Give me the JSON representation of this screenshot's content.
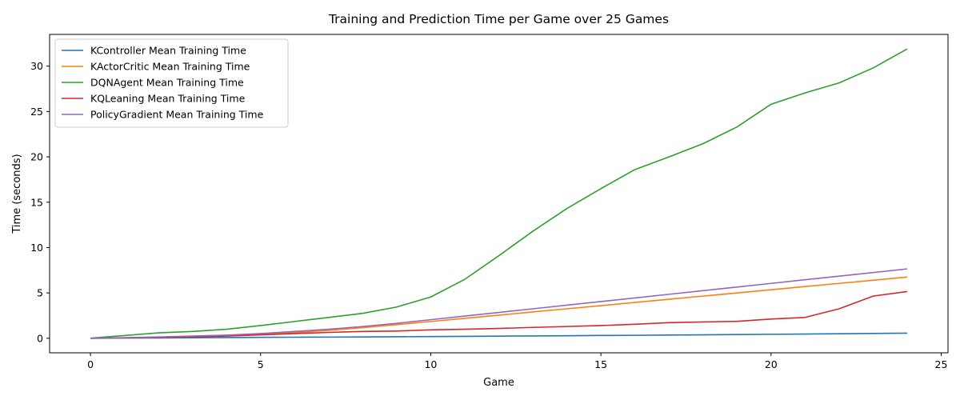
{
  "chart_data": {
    "type": "line",
    "title": "Training and Prediction Time per Game over 25 Games",
    "xlabel": "Game",
    "ylabel": "Time (seconds)",
    "xlim": [
      -1.2,
      25.2
    ],
    "ylim": [
      -1.6,
      33.5
    ],
    "xticks": [
      0,
      5,
      10,
      15,
      20,
      25
    ],
    "yticks": [
      0,
      5,
      10,
      15,
      20,
      25,
      30
    ],
    "grid": false,
    "legend_position": "top-left",
    "x": [
      0,
      1,
      2,
      3,
      4,
      5,
      6,
      7,
      8,
      9,
      10,
      11,
      12,
      13,
      14,
      15,
      16,
      17,
      18,
      19,
      20,
      21,
      22,
      23,
      24
    ],
    "series": [
      {
        "name": "KController Mean Training Time",
        "color": "#1f77b4",
        "values": [
          0.0,
          0.02,
          0.04,
          0.06,
          0.08,
          0.1,
          0.12,
          0.13,
          0.15,
          0.17,
          0.19,
          0.21,
          0.24,
          0.26,
          0.28,
          0.31,
          0.33,
          0.36,
          0.38,
          0.41,
          0.44,
          0.47,
          0.5,
          0.53,
          0.57
        ]
      },
      {
        "name": "KActorCritic Mean Training Time",
        "color": "#ff7f0e",
        "values": [
          0.0,
          0.05,
          0.1,
          0.17,
          0.27,
          0.42,
          0.62,
          0.87,
          1.17,
          1.5,
          1.85,
          2.2,
          2.55,
          2.9,
          3.25,
          3.6,
          3.95,
          4.3,
          4.65,
          5.0,
          5.35,
          5.7,
          6.05,
          6.4,
          6.75
        ]
      },
      {
        "name": "DQNAgent Mean Training Time",
        "color": "#2ca02c",
        "values": [
          0.02,
          0.3,
          0.6,
          0.75,
          1.0,
          1.4,
          1.85,
          2.3,
          2.75,
          3.45,
          4.55,
          6.5,
          9.1,
          11.8,
          14.3,
          16.5,
          18.6,
          20.0,
          21.45,
          23.3,
          25.8,
          27.05,
          28.15,
          29.8,
          31.9
        ]
      },
      {
        "name": "KQLeaning Mean Training Time",
        "color": "#d62728",
        "values": [
          0.0,
          0.05,
          0.1,
          0.17,
          0.25,
          0.38,
          0.52,
          0.65,
          0.75,
          0.8,
          0.93,
          1.0,
          1.08,
          1.2,
          1.3,
          1.4,
          1.55,
          1.72,
          1.8,
          1.87,
          2.12,
          2.3,
          3.25,
          4.65,
          5.15
        ]
      },
      {
        "name": "PolicyGradient Mean Training Time",
        "color": "#9467bd",
        "values": [
          0.0,
          0.07,
          0.15,
          0.25,
          0.35,
          0.52,
          0.75,
          1.0,
          1.3,
          1.65,
          2.05,
          2.45,
          2.85,
          3.25,
          3.65,
          4.05,
          4.45,
          4.85,
          5.25,
          5.65,
          6.05,
          6.45,
          6.85,
          7.25,
          7.65
        ]
      }
    ]
  }
}
